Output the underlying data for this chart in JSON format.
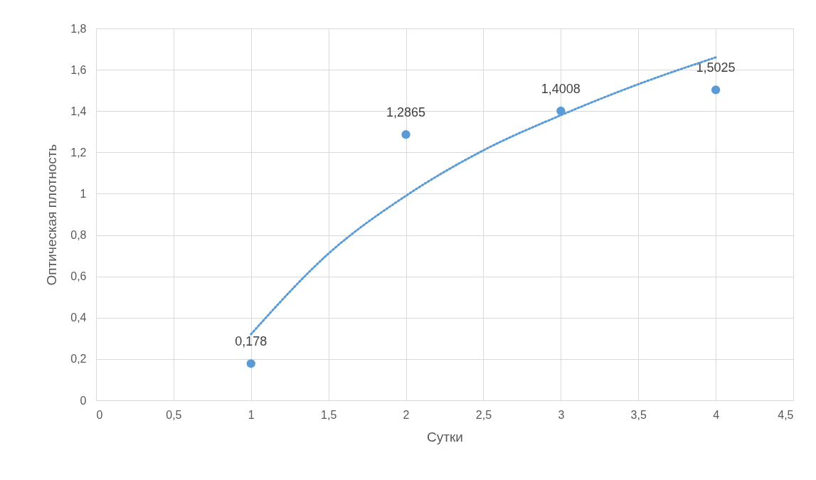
{
  "chart_data": {
    "type": "scatter",
    "xlabel": "Сутки",
    "ylabel": "Оптическая плотность",
    "xlim": [
      0,
      4.5
    ],
    "xticks": [
      0,
      {
        "value": 0.5,
        "label": "0,5"
      },
      1,
      {
        "value": 1.5,
        "label": "1,5"
      },
      2,
      {
        "value": 2.5,
        "label": "2,5"
      },
      3,
      {
        "value": 3.5,
        "label": "3,5"
      },
      4,
      {
        "value": 4.5,
        "label": "4,5"
      }
    ],
    "ylim": [
      0,
      1.8
    ],
    "yticks": [
      0,
      {
        "value": 0.2,
        "label": "0,2"
      },
      {
        "value": 0.4,
        "label": "0,4"
      },
      {
        "value": 0.6,
        "label": "0,6"
      },
      {
        "value": 0.8,
        "label": "0,8"
      },
      1,
      {
        "value": 1.2,
        "label": "1,2"
      },
      {
        "value": 1.4,
        "label": "1,4"
      },
      {
        "value": 1.6,
        "label": "1,6"
      },
      {
        "value": 1.8,
        "label": "1,8"
      }
    ],
    "grid": true,
    "series": [
      {
        "color": "#5b9bd5",
        "marker": "circle",
        "x": [
          1,
          2,
          3,
          4
        ],
        "values": [
          0.178,
          1.2865,
          1.4008,
          1.5025
        ],
        "value_labels": [
          "0,178",
          "1,2865",
          "1,4008",
          "1,5025"
        ]
      },
      {
        "type": "line",
        "color": "#5b9bd5",
        "marker": "none",
        "line_style": "dotted",
        "x": [
          1,
          1.5,
          2,
          2.5,
          3,
          3.5,
          4
        ],
        "values": [
          0.32,
          0.71,
          0.99,
          1.21,
          1.38,
          1.53,
          1.66
        ]
      }
    ]
  }
}
